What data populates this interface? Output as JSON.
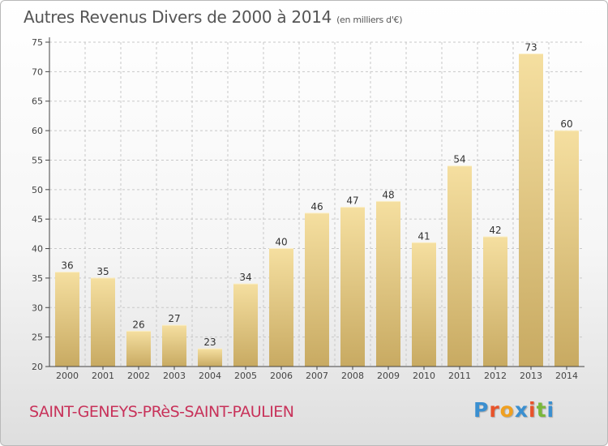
{
  "title": "Autres Revenus Divers de 2000 à 2014",
  "subtitle": "(en milliers d'€)",
  "location": "SAINT-GENEYS-PRèS-SAINT-PAULIEN",
  "brand": {
    "text": "Proxiti",
    "letter_colors": [
      "#3a8fd0",
      "#e8532a",
      "#f0a020",
      "#3a8fd0",
      "#e8532a",
      "#7ab83a",
      "#3a8fd0"
    ]
  },
  "colors": {
    "bar_light": "#f5dfa0",
    "bar_dark": "#c8aa62",
    "grid": "#c8c8c8",
    "axis": "#444444",
    "title": "#555555",
    "location": "#c8325a"
  },
  "chart_data": {
    "type": "bar",
    "categories": [
      "2000",
      "2001",
      "2002",
      "2003",
      "2004",
      "2005",
      "2006",
      "2007",
      "2008",
      "2009",
      "2010",
      "2011",
      "2012",
      "2013",
      "2014"
    ],
    "values": [
      36,
      35,
      26,
      27,
      23,
      34,
      40,
      46,
      47,
      48,
      41,
      54,
      42,
      73,
      60
    ],
    "title": "Autres Revenus Divers de 2000 à 2014",
    "xlabel": "",
    "ylabel": "",
    "ylim": [
      20,
      75
    ],
    "yticks": [
      20,
      25,
      30,
      35,
      40,
      45,
      50,
      55,
      60,
      65,
      70,
      75
    ],
    "grid": "horizontal dashed",
    "legend": "none"
  }
}
